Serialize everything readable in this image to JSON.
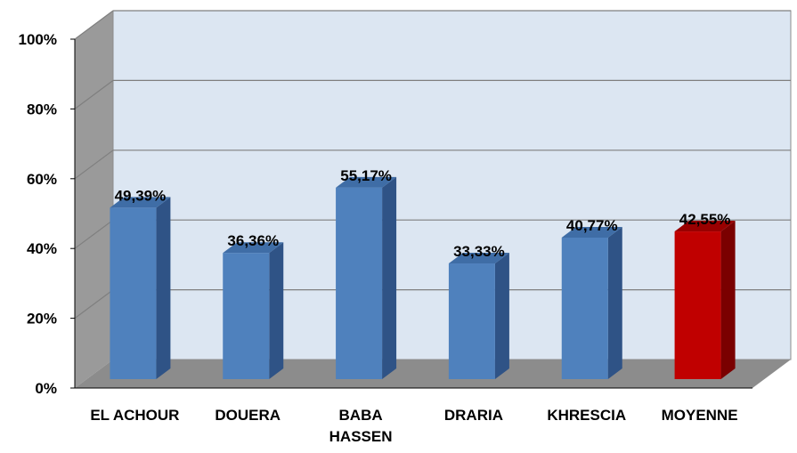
{
  "chart_data": {
    "type": "bar",
    "categories": [
      "EL ACHOUR",
      "DOUERA",
      "BABA HASSEN",
      "DRARIA",
      "KHRESCIA",
      "MOYENNE"
    ],
    "category_lines": [
      [
        "EL ACHOUR"
      ],
      [
        "DOUERA"
      ],
      [
        "BABA",
        "HASSEN"
      ],
      [
        "DRARIA"
      ],
      [
        "KHRESCIA"
      ],
      [
        "MOYENNE"
      ]
    ],
    "values": [
      49.39,
      36.36,
      55.17,
      33.33,
      40.77,
      42.55
    ],
    "value_labels": [
      "49,39%",
      "36,36%",
      "55,17%",
      "33,33%",
      "40,77%",
      "42,55%"
    ],
    "ylim": [
      0,
      100
    ],
    "yticks": [
      0,
      20,
      40,
      60,
      80,
      100
    ],
    "ytick_labels": [
      "0%",
      "20%",
      "40%",
      "60%",
      "80%",
      "100%"
    ],
    "title": "",
    "xlabel": "",
    "ylabel": "",
    "grid": true,
    "legend": "none",
    "style": "3d-column",
    "colors": {
      "bar": "#4f81bd",
      "bar_side": "#2f5386",
      "bar_top": "#3f6da6",
      "highlight": "#c00000",
      "highlight_side": "#7a0000",
      "highlight_top": "#990000",
      "wall": "#dce6f2",
      "side_wall": "#9a9a9a",
      "floor": "#8c8c8c",
      "grid": "#7f7f7f"
    },
    "highlight_category": "MOYENNE"
  }
}
